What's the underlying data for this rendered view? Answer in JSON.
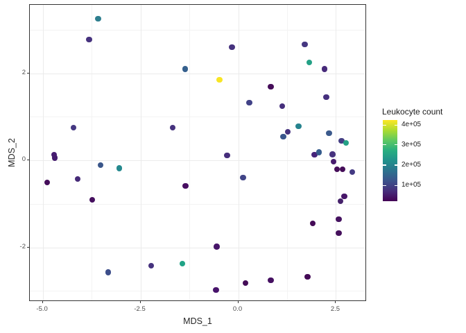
{
  "chart_data": {
    "type": "scatter",
    "title": "",
    "xlabel": "MDS_1",
    "ylabel": "MDS_2",
    "xlim": [
      -5.33,
      3.29
    ],
    "ylim": [
      -3.25,
      3.57
    ],
    "grid": true,
    "x_ticks": [
      {
        "value": -5.0,
        "label": "-5.0"
      },
      {
        "value": -2.5,
        "label": "-2.5"
      },
      {
        "value": 0.0,
        "label": "0.0"
      },
      {
        "value": 2.5,
        "label": "2.5"
      }
    ],
    "y_ticks": [
      {
        "value": 2,
        "label": "2"
      },
      {
        "value": 0,
        "label": "0"
      },
      {
        "value": -2,
        "label": "-2"
      }
    ],
    "x_minor": [
      -3.75,
      -1.25,
      1.25
    ],
    "y_minor": [
      3,
      1,
      -1,
      -3
    ],
    "points": [
      {
        "x": -3.58,
        "y": 3.25,
        "color": "#2e7e8e"
      },
      {
        "x": -3.81,
        "y": 2.77,
        "color": "#46327e"
      },
      {
        "x": -0.16,
        "y": 2.6,
        "color": "#46327e"
      },
      {
        "x": 1.7,
        "y": 2.66,
        "color": "#453781"
      },
      {
        "x": -1.36,
        "y": 2.1,
        "color": "#35608d"
      },
      {
        "x": 1.82,
        "y": 2.25,
        "color": "#24a186"
      },
      {
        "x": 2.21,
        "y": 2.1,
        "color": "#472a7a"
      },
      {
        "x": -0.48,
        "y": 1.85,
        "color": "#f8e524"
      },
      {
        "x": 0.83,
        "y": 1.69,
        "color": "#450d59"
      },
      {
        "x": 2.25,
        "y": 1.45,
        "color": "#46307e"
      },
      {
        "x": 0.28,
        "y": 1.32,
        "color": "#414287"
      },
      {
        "x": 1.13,
        "y": 1.24,
        "color": "#462f7c"
      },
      {
        "x": -4.21,
        "y": 0.75,
        "color": "#453882"
      },
      {
        "x": -1.68,
        "y": 0.75,
        "color": "#46327e"
      },
      {
        "x": 1.54,
        "y": 0.78,
        "color": "#26838e"
      },
      {
        "x": 1.27,
        "y": 0.65,
        "color": "#46327e"
      },
      {
        "x": 1.15,
        "y": 0.54,
        "color": "#39568c"
      },
      {
        "x": 2.32,
        "y": 0.62,
        "color": "#3b5a8c"
      },
      {
        "x": 2.64,
        "y": 0.45,
        "color": "#453f84"
      },
      {
        "x": 2.76,
        "y": 0.4,
        "color": "#24a185"
      },
      {
        "x": 1.95,
        "y": 0.13,
        "color": "#46247b"
      },
      {
        "x": 2.07,
        "y": 0.18,
        "color": "#365c8d"
      },
      {
        "x": 2.41,
        "y": 0.14,
        "color": "#46327e"
      },
      {
        "x": 2.44,
        "y": -0.03,
        "color": "#481c6e"
      },
      {
        "x": -4.71,
        "y": 0.13,
        "color": "#471c71"
      },
      {
        "x": -4.69,
        "y": 0.06,
        "color": "#451b6e"
      },
      {
        "x": -0.28,
        "y": 0.11,
        "color": "#462d7b"
      },
      {
        "x": -3.52,
        "y": -0.11,
        "color": "#3a568a"
      },
      {
        "x": -3.04,
        "y": -0.18,
        "color": "#25898e"
      },
      {
        "x": 0.12,
        "y": -0.4,
        "color": "#414487"
      },
      {
        "x": -4.11,
        "y": -0.43,
        "color": "#462a78"
      },
      {
        "x": -4.89,
        "y": -0.51,
        "color": "#440d5a"
      },
      {
        "x": -1.35,
        "y": -0.59,
        "color": "#470e61"
      },
      {
        "x": -3.73,
        "y": -0.91,
        "color": "#450f5e"
      },
      {
        "x": 2.53,
        "y": -0.21,
        "color": "#450d59"
      },
      {
        "x": 2.67,
        "y": -0.21,
        "color": "#450d59"
      },
      {
        "x": 2.92,
        "y": -0.27,
        "color": "#443a83"
      },
      {
        "x": 2.71,
        "y": -0.83,
        "color": "#471669"
      },
      {
        "x": 2.62,
        "y": -0.94,
        "color": "#46226b"
      },
      {
        "x": 2.57,
        "y": -1.35,
        "color": "#451260"
      },
      {
        "x": 1.91,
        "y": -1.45,
        "color": "#440a57"
      },
      {
        "x": 2.57,
        "y": -1.67,
        "color": "#45105c"
      },
      {
        "x": -0.55,
        "y": -1.98,
        "color": "#471569"
      },
      {
        "x": -3.33,
        "y": -2.57,
        "color": "#3d4e8a"
      },
      {
        "x": -2.23,
        "y": -2.42,
        "color": "#46327e"
      },
      {
        "x": -1.43,
        "y": -2.37,
        "color": "#20a386"
      },
      {
        "x": -0.57,
        "y": -2.98,
        "color": "#47136b"
      },
      {
        "x": 0.19,
        "y": -2.82,
        "color": "#440c57"
      },
      {
        "x": 0.83,
        "y": -2.76,
        "color": "#451061"
      },
      {
        "x": 1.77,
        "y": -2.68,
        "color": "#440a56"
      }
    ],
    "legend": {
      "title": "Leukocyte count",
      "position": "right",
      "entries": [
        {
          "label": "4e+05",
          "frac_from_top": 0.06
        },
        {
          "label": "3e+05",
          "frac_from_top": 0.305
        },
        {
          "label": "2e+05",
          "frac_from_top": 0.555
        },
        {
          "label": "1e+05",
          "frac_from_top": 0.805
        }
      ],
      "gradient_bottom_to_top": [
        "#440154",
        "#472d7b",
        "#3b528b",
        "#2c728e",
        "#21918c",
        "#28ae80",
        "#5ec962",
        "#addc30",
        "#fde725"
      ]
    }
  }
}
